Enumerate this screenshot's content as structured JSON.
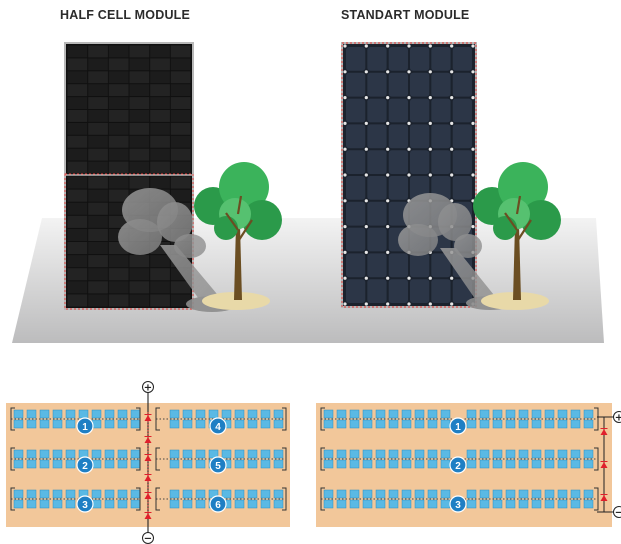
{
  "titles": {
    "half_cell": "HALF CELL MODULE",
    "standard": "STANDART MODULE"
  },
  "half_cell_diagram": {
    "string_numbers": [
      "1",
      "2",
      "3",
      "4",
      "5",
      "6"
    ],
    "terminal_positive": "+",
    "terminal_negative": "−"
  },
  "standard_diagram": {
    "string_numbers": [
      "1",
      "2",
      "3"
    ],
    "terminal_positive": "+",
    "terminal_negative": "−"
  },
  "colors": {
    "panel_frame": "#b5b5b5",
    "cell_dark": "#1e1e1e",
    "cell_standard": "#2b3442",
    "diagram_background": "#f2c79a",
    "diagram_cell": "#5ab9e4",
    "string_badge": "#1f7fc4",
    "bypass_diode": "#e0202c",
    "tree_foliage": "#2e9d4d",
    "tree_trunk": "#6b4e22",
    "shadow": "#8f8f8f"
  }
}
